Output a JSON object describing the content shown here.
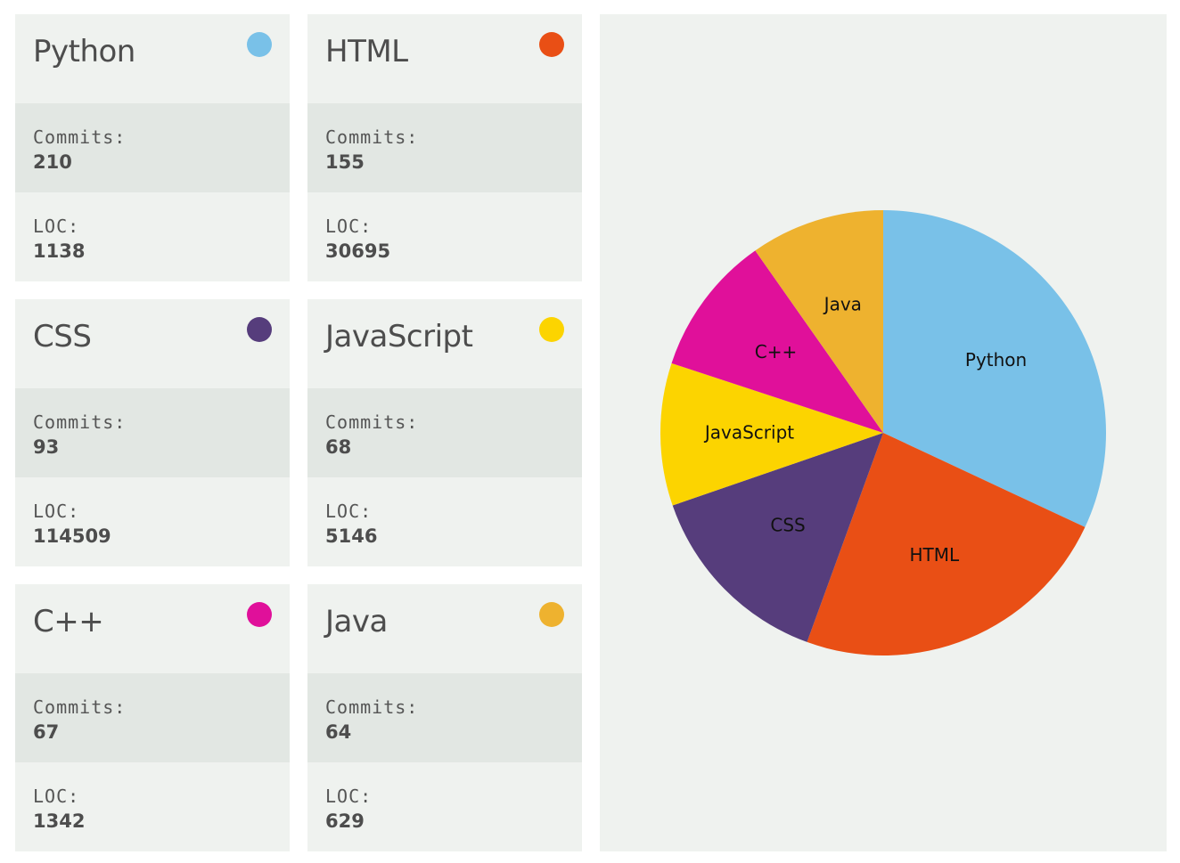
{
  "labels": {
    "commits": "Commits:",
    "loc": "LOC:"
  },
  "languages": [
    {
      "name": "Python",
      "color": "#79c1e8",
      "commits": "210",
      "loc": "1138"
    },
    {
      "name": "HTML",
      "color": "#e94f15",
      "commits": "155",
      "loc": "30695"
    },
    {
      "name": "CSS",
      "color": "#563d7c",
      "commits": "93",
      "loc": "114509"
    },
    {
      "name": "JavaScript",
      "color": "#fcd400",
      "commits": "68",
      "loc": "5146"
    },
    {
      "name": "C++",
      "color": "#e0109a",
      "commits": "67",
      "loc": "1342"
    },
    {
      "name": "Java",
      "color": "#eeb22f",
      "commits": "64",
      "loc": "629"
    }
  ],
  "chart_data": {
    "type": "pie",
    "categories": [
      "Python",
      "HTML",
      "CSS",
      "JavaScript",
      "C++",
      "Java"
    ],
    "values": [
      210,
      155,
      93,
      68,
      67,
      64
    ],
    "colors": [
      "#79c1e8",
      "#e94f15",
      "#563d7c",
      "#fcd400",
      "#e0109a",
      "#eeb22f"
    ],
    "start": "12 o'clock",
    "direction": "clockwise"
  }
}
